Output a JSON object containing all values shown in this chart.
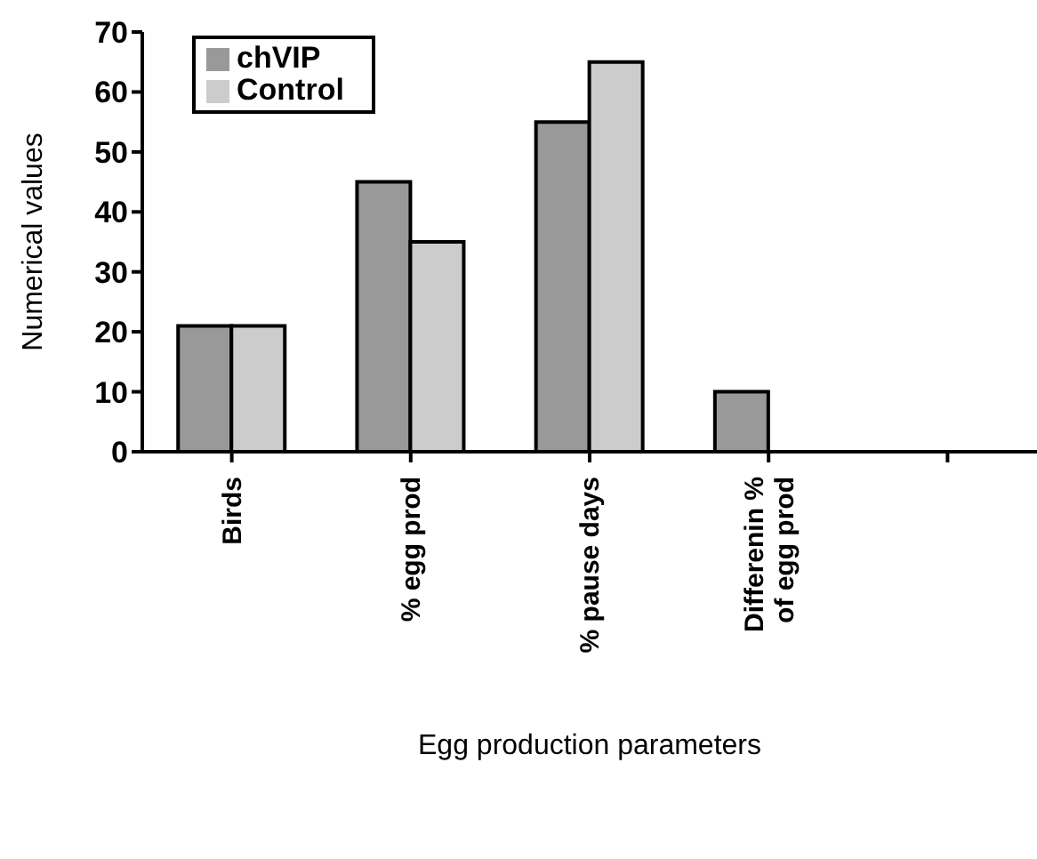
{
  "chart_data": {
    "type": "bar",
    "xlabel": "Egg production parameters",
    "ylabel": "Numerical values",
    "categories": [
      "Birds",
      "% egg prod",
      "% pause days",
      "Differenin % of egg prod",
      null
    ],
    "series": [
      {
        "name": "chVIP",
        "color": "#999999",
        "values": [
          21,
          45,
          55,
          10,
          null
        ]
      },
      {
        "name": "Control",
        "color": "#cccccc",
        "values": [
          21,
          35,
          65,
          null,
          null
        ]
      }
    ],
    "ylim": [
      0,
      70
    ],
    "yticks": [
      0,
      10,
      20,
      30,
      40,
      50,
      60,
      70
    ],
    "grid": false,
    "legend": "top left"
  }
}
